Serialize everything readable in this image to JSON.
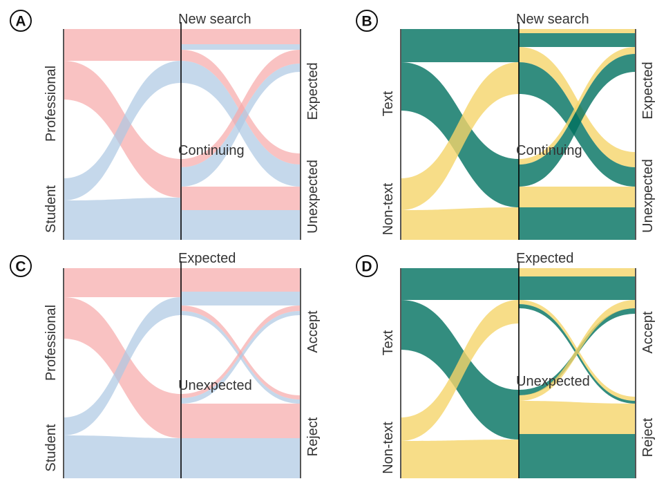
{
  "colors": {
    "pink": "#f7a8a8",
    "blue": "#adc8e2",
    "teal": "#00705f",
    "yellow": "#f5d56a",
    "axis": "#555555",
    "center_axis": "#000000"
  },
  "panels": [
    {
      "id": "A",
      "badge": "A",
      "left_labels": [
        "Professional",
        "Student"
      ],
      "mid_labels": [
        "New search",
        "Continuing"
      ],
      "right_labels": [
        "Expected",
        "Unexpected"
      ]
    },
    {
      "id": "B",
      "badge": "B",
      "left_labels": [
        "Text",
        "Non-text"
      ],
      "mid_labels": [
        "New search",
        "Continuing"
      ],
      "right_labels": [
        "Expected",
        "Unexpected"
      ]
    },
    {
      "id": "C",
      "badge": "C",
      "left_labels": [
        "Professional",
        "Student"
      ],
      "mid_labels": [
        "Expected",
        "Unexpected"
      ],
      "right_labels": [
        "Accept",
        "Reject"
      ]
    },
    {
      "id": "D",
      "badge": "D",
      "left_labels": [
        "Text",
        "Non-text"
      ],
      "mid_labels": [
        "Expected",
        "Unexpected"
      ],
      "right_labels": [
        "Accept",
        "Reject"
      ]
    }
  ]
}
